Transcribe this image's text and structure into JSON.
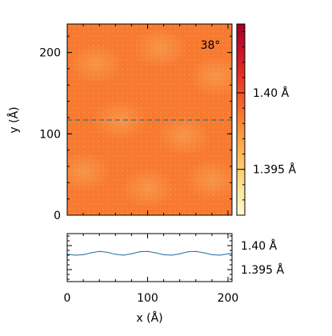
{
  "chart_data": [
    {
      "type": "heatmap",
      "annotation": "38°",
      "xlabel": "",
      "ylabel": "y (Å)",
      "xlim": [
        0,
        205
      ],
      "ylim": [
        0,
        235
      ],
      "yticks": [
        0,
        100,
        200
      ],
      "ytick_labels": [
        "0",
        "100",
        "200"
      ],
      "cut_line_y": 117,
      "field_mean_bond_length": 1.3985,
      "colorbar": {
        "range": [
          1.392,
          1.4045
        ],
        "ticks": [
          1.395,
          1.4
        ],
        "tick_labels": [
          "1.395 Å",
          "1.40 Å"
        ],
        "colors": [
          "#fffbd2",
          "#fee79a",
          "#fecb6a",
          "#fda84a",
          "#f98032",
          "#f35428",
          "#e32a22",
          "#c8102a",
          "#a00026"
        ]
      }
    },
    {
      "type": "line",
      "title": "",
      "xlabel": "x (Å)",
      "ylabel": "",
      "xlim": [
        0,
        205
      ],
      "ylim": [
        1.3925,
        1.4025
      ],
      "xticks": [
        0,
        100,
        200
      ],
      "xtick_labels": [
        "0",
        "100",
        "200"
      ],
      "yticks": [
        1.395,
        1.4
      ],
      "ytick_labels": [
        "1.395 Å",
        "1.40 Å"
      ],
      "series": [
        {
          "color": "#1f6fa0",
          "x": [
            0,
            10,
            20,
            30,
            40,
            50,
            60,
            70,
            80,
            90,
            100,
            110,
            120,
            130,
            140,
            150,
            160,
            170,
            180,
            190,
            200,
            205
          ],
          "y": [
            1.3982,
            1.398,
            1.3981,
            1.3985,
            1.3988,
            1.3986,
            1.3982,
            1.398,
            1.3983,
            1.3987,
            1.3988,
            1.3985,
            1.3981,
            1.398,
            1.3983,
            1.3987,
            1.3988,
            1.3985,
            1.3981,
            1.398,
            1.3983,
            1.3984
          ]
        }
      ]
    }
  ]
}
